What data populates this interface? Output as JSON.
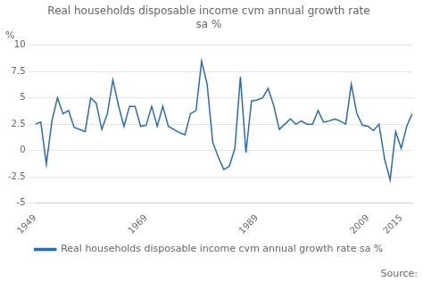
{
  "chart_data": {
    "type": "line",
    "title": "Real households disposable income cvm annual growth rate\nsa %",
    "ylabel": "%",
    "annotations": [
      "Source:"
    ],
    "x": [
      1949,
      1950,
      1951,
      1952,
      1953,
      1954,
      1955,
      1956,
      1957,
      1958,
      1959,
      1960,
      1961,
      1962,
      1963,
      1964,
      1965,
      1966,
      1967,
      1968,
      1969,
      1970,
      1971,
      1972,
      1973,
      1974,
      1975,
      1976,
      1977,
      1978,
      1979,
      1980,
      1981,
      1982,
      1983,
      1984,
      1985,
      1986,
      1987,
      1988,
      1989,
      1990,
      1991,
      1992,
      1993,
      1994,
      1995,
      1996,
      1997,
      1998,
      1999,
      2000,
      2001,
      2002,
      2003,
      2004,
      2005,
      2006,
      2007,
      2008,
      2009,
      2010,
      2011,
      2012,
      2013,
      2014,
      2015,
      2016,
      2017
    ],
    "series": [
      {
        "name": "Real households disposable income cvm annual growth rate sa %",
        "color": "#2b6cb0",
        "values": [
          2.5,
          2.7,
          -1.3,
          2.8,
          5.0,
          3.5,
          3.8,
          2.2,
          2.0,
          1.8,
          5.0,
          4.5,
          2.0,
          3.5,
          6.7,
          4.3,
          2.3,
          4.2,
          4.2,
          2.3,
          2.4,
          4.2,
          2.3,
          4.2,
          2.3,
          2.0,
          1.7,
          1.5,
          3.5,
          3.8,
          8.5,
          6.3,
          0.8,
          -0.6,
          -1.8,
          -1.5,
          0.2,
          7.0,
          -0.2,
          4.7,
          4.8,
          5.0,
          5.9,
          4.3,
          2.0,
          2.5,
          3.0,
          2.5,
          2.8,
          2.5,
          2.5,
          3.8,
          2.7,
          2.8,
          3.0,
          2.8,
          2.5,
          6.3,
          3.5,
          2.4,
          2.3,
          1.9,
          2.5,
          -0.8,
          -2.8,
          1.8,
          0.2,
          2.3,
          3.5
        ]
      }
    ],
    "xlim": [
      1949,
      2017
    ],
    "xticks": [
      1949,
      1969,
      1989,
      2009,
      2015
    ],
    "ylim": [
      -5,
      10
    ],
    "yticks": [
      -5,
      -2.5,
      0,
      2.5,
      5,
      7.5,
      10
    ],
    "grid": true,
    "legend": "bottom"
  }
}
